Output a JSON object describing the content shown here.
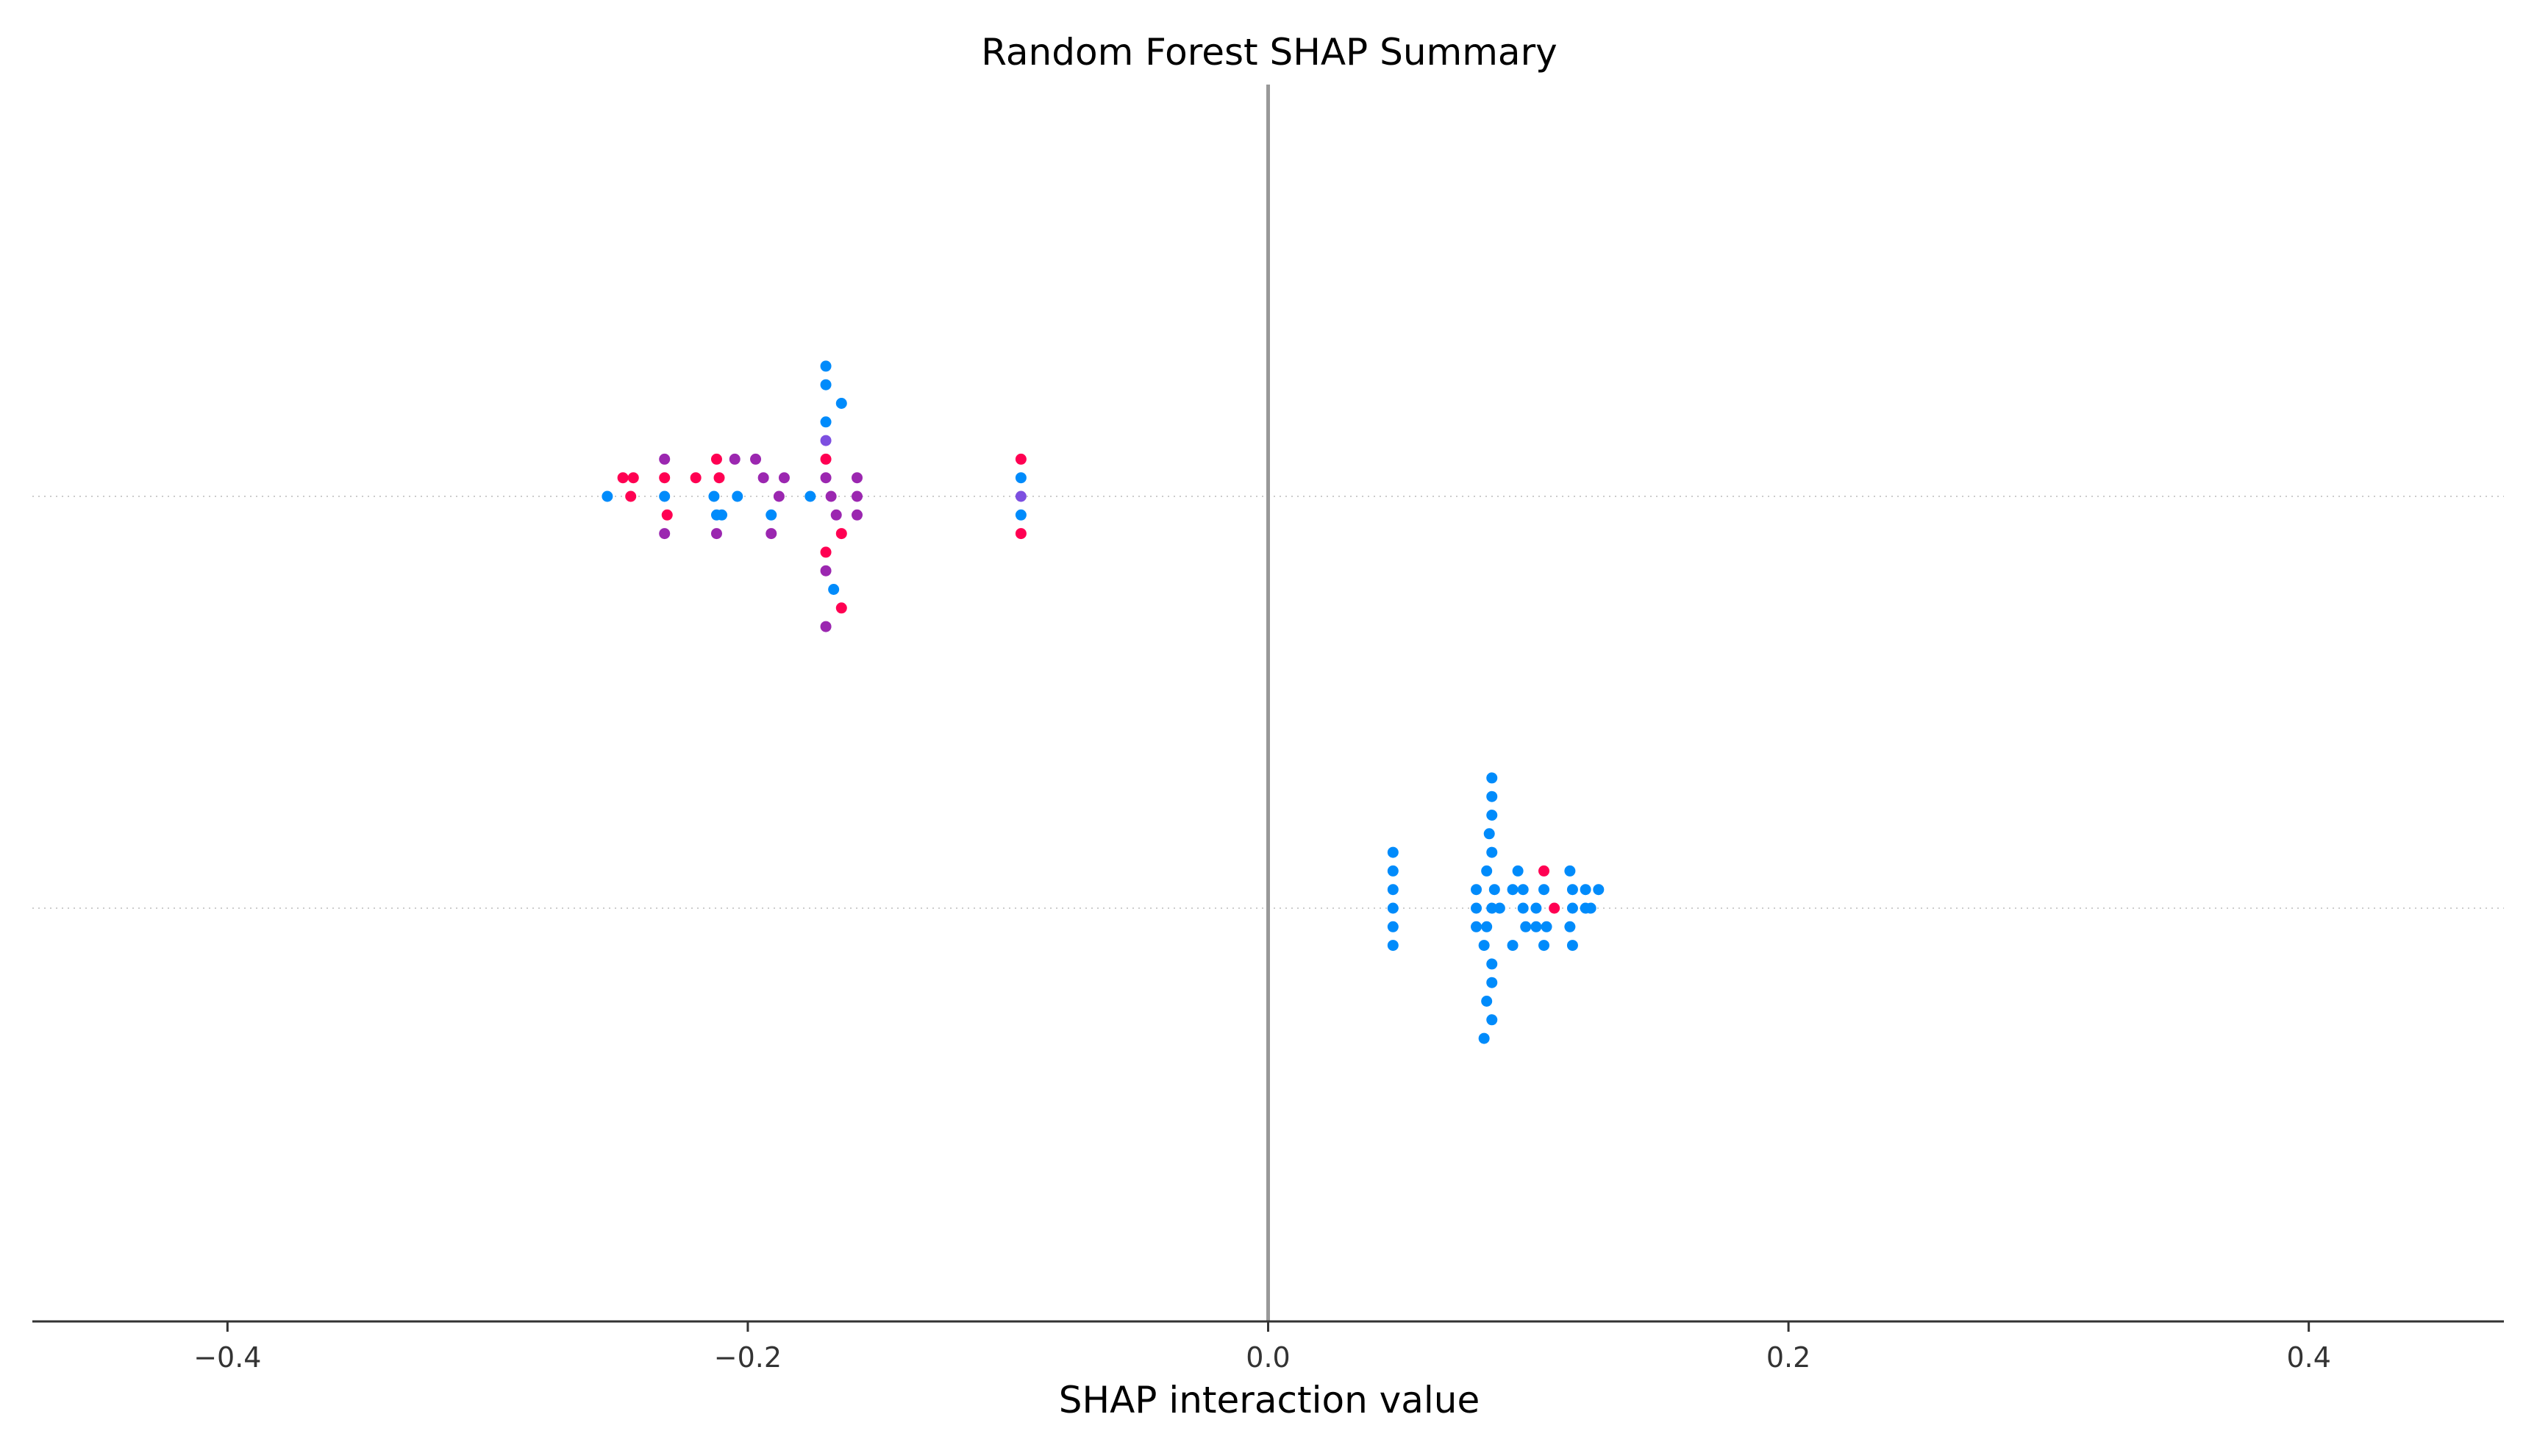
{
  "chart_data": {
    "type": "scatter",
    "title": "Random Forest SHAP Summary",
    "xlabel": "SHAP interaction value",
    "ylabel": "",
    "xlim": [
      -0.475,
      0.475
    ],
    "xticks": [
      -0.4,
      -0.2,
      0.0,
      0.2,
      0.4
    ],
    "xtick_labels": [
      "−0.4",
      "−0.2",
      "0.0",
      "0.2",
      "0.4"
    ],
    "rows": 2,
    "reference_line_x": 0.0,
    "grid": "dotted horizontal row guides",
    "colors": {
      "low": "#008bfb",
      "mid_low": "#7d4fe0",
      "mid_high": "#9b27b0",
      "high": "#ff0052",
      "reference_line": "#999999",
      "axis": "#333333"
    },
    "rows_data": [
      {
        "row": 0,
        "points": [
          {
            "x": -0.17,
            "y": 7,
            "c": "low"
          },
          {
            "x": -0.17,
            "y": 6,
            "c": "low"
          },
          {
            "x": -0.164,
            "y": 5,
            "c": "low"
          },
          {
            "x": -0.17,
            "y": 4,
            "c": "low"
          },
          {
            "x": -0.17,
            "y": 3,
            "c": "mid_low"
          },
          {
            "x": -0.232,
            "y": 2,
            "c": "mid_high"
          },
          {
            "x": -0.212,
            "y": 2,
            "c": "high"
          },
          {
            "x": -0.205,
            "y": 2,
            "c": "mid_high"
          },
          {
            "x": -0.197,
            "y": 2,
            "c": "mid_high"
          },
          {
            "x": -0.17,
            "y": 2,
            "c": "high"
          },
          {
            "x": -0.095,
            "y": 2,
            "c": "high"
          },
          {
            "x": -0.248,
            "y": 1,
            "c": "high"
          },
          {
            "x": -0.244,
            "y": 1,
            "c": "high"
          },
          {
            "x": -0.232,
            "y": 1,
            "c": "high"
          },
          {
            "x": -0.22,
            "y": 1,
            "c": "high"
          },
          {
            "x": -0.211,
            "y": 1,
            "c": "high"
          },
          {
            "x": -0.194,
            "y": 1,
            "c": "mid_high"
          },
          {
            "x": -0.186,
            "y": 1,
            "c": "mid_high"
          },
          {
            "x": -0.17,
            "y": 1,
            "c": "mid_high"
          },
          {
            "x": -0.158,
            "y": 1,
            "c": "mid_high"
          },
          {
            "x": -0.095,
            "y": 1,
            "c": "low"
          },
          {
            "x": -0.254,
            "y": 0,
            "c": "low"
          },
          {
            "x": -0.245,
            "y": 0,
            "c": "high"
          },
          {
            "x": -0.232,
            "y": 0,
            "c": "low"
          },
          {
            "x": -0.213,
            "y": 0,
            "c": "low"
          },
          {
            "x": -0.204,
            "y": 0,
            "c": "low"
          },
          {
            "x": -0.188,
            "y": 0,
            "c": "mid_high"
          },
          {
            "x": -0.176,
            "y": 0,
            "c": "low"
          },
          {
            "x": -0.168,
            "y": 0,
            "c": "mid_high"
          },
          {
            "x": -0.158,
            "y": 0,
            "c": "mid_high"
          },
          {
            "x": -0.095,
            "y": 0,
            "c": "mid_low"
          },
          {
            "x": -0.231,
            "y": -1,
            "c": "high"
          },
          {
            "x": -0.212,
            "y": -1,
            "c": "low"
          },
          {
            "x": -0.21,
            "y": -1,
            "c": "low"
          },
          {
            "x": -0.191,
            "y": -1,
            "c": "low"
          },
          {
            "x": -0.166,
            "y": -1,
            "c": "mid_high"
          },
          {
            "x": -0.158,
            "y": -1,
            "c": "mid_high"
          },
          {
            "x": -0.095,
            "y": -1,
            "c": "low"
          },
          {
            "x": -0.232,
            "y": -2,
            "c": "mid_high"
          },
          {
            "x": -0.212,
            "y": -2,
            "c": "mid_high"
          },
          {
            "x": -0.191,
            "y": -2,
            "c": "mid_high"
          },
          {
            "x": -0.164,
            "y": -2,
            "c": "high"
          },
          {
            "x": -0.095,
            "y": -2,
            "c": "high"
          },
          {
            "x": -0.17,
            "y": -3,
            "c": "high"
          },
          {
            "x": -0.17,
            "y": -4,
            "c": "mid_high"
          },
          {
            "x": -0.167,
            "y": -5,
            "c": "low"
          },
          {
            "x": -0.164,
            "y": -6,
            "c": "high"
          },
          {
            "x": -0.17,
            "y": -7,
            "c": "mid_high"
          }
        ]
      },
      {
        "row": 1,
        "points": [
          {
            "x": 0.086,
            "y": 7,
            "c": "low"
          },
          {
            "x": 0.086,
            "y": 6,
            "c": "low"
          },
          {
            "x": 0.086,
            "y": 5,
            "c": "low"
          },
          {
            "x": 0.085,
            "y": 4,
            "c": "low"
          },
          {
            "x": 0.048,
            "y": 3,
            "c": "low"
          },
          {
            "x": 0.086,
            "y": 3,
            "c": "low"
          },
          {
            "x": 0.048,
            "y": 2,
            "c": "low"
          },
          {
            "x": 0.084,
            "y": 2,
            "c": "low"
          },
          {
            "x": 0.096,
            "y": 2,
            "c": "low"
          },
          {
            "x": 0.106,
            "y": 2,
            "c": "high"
          },
          {
            "x": 0.116,
            "y": 2,
            "c": "low"
          },
          {
            "x": 0.048,
            "y": 1,
            "c": "low"
          },
          {
            "x": 0.08,
            "y": 1,
            "c": "low"
          },
          {
            "x": 0.087,
            "y": 1,
            "c": "low"
          },
          {
            "x": 0.094,
            "y": 1,
            "c": "low"
          },
          {
            "x": 0.098,
            "y": 1,
            "c": "low"
          },
          {
            "x": 0.106,
            "y": 1,
            "c": "low"
          },
          {
            "x": 0.117,
            "y": 1,
            "c": "low"
          },
          {
            "x": 0.122,
            "y": 1,
            "c": "low"
          },
          {
            "x": 0.127,
            "y": 1,
            "c": "low"
          },
          {
            "x": 0.048,
            "y": 0,
            "c": "low"
          },
          {
            "x": 0.08,
            "y": 0,
            "c": "low"
          },
          {
            "x": 0.086,
            "y": 0,
            "c": "low"
          },
          {
            "x": 0.089,
            "y": 0,
            "c": "low"
          },
          {
            "x": 0.098,
            "y": 0,
            "c": "low"
          },
          {
            "x": 0.103,
            "y": 0,
            "c": "low"
          },
          {
            "x": 0.11,
            "y": 0,
            "c": "high"
          },
          {
            "x": 0.117,
            "y": 0,
            "c": "low"
          },
          {
            "x": 0.122,
            "y": 0,
            "c": "low"
          },
          {
            "x": 0.124,
            "y": 0,
            "c": "low"
          },
          {
            "x": 0.048,
            "y": -1,
            "c": "low"
          },
          {
            "x": 0.08,
            "y": -1,
            "c": "low"
          },
          {
            "x": 0.084,
            "y": -1,
            "c": "low"
          },
          {
            "x": 0.099,
            "y": -1,
            "c": "low"
          },
          {
            "x": 0.103,
            "y": -1,
            "c": "low"
          },
          {
            "x": 0.107,
            "y": -1,
            "c": "low"
          },
          {
            "x": 0.116,
            "y": -1,
            "c": "low"
          },
          {
            "x": 0.048,
            "y": -2,
            "c": "low"
          },
          {
            "x": 0.083,
            "y": -2,
            "c": "low"
          },
          {
            "x": 0.094,
            "y": -2,
            "c": "low"
          },
          {
            "x": 0.106,
            "y": -2,
            "c": "low"
          },
          {
            "x": 0.117,
            "y": -2,
            "c": "low"
          },
          {
            "x": 0.086,
            "y": -3,
            "c": "low"
          },
          {
            "x": 0.086,
            "y": -4,
            "c": "low"
          },
          {
            "x": 0.084,
            "y": -5,
            "c": "low"
          },
          {
            "x": 0.086,
            "y": -6,
            "c": "low"
          },
          {
            "x": 0.083,
            "y": -7,
            "c": "low"
          }
        ]
      }
    ]
  }
}
